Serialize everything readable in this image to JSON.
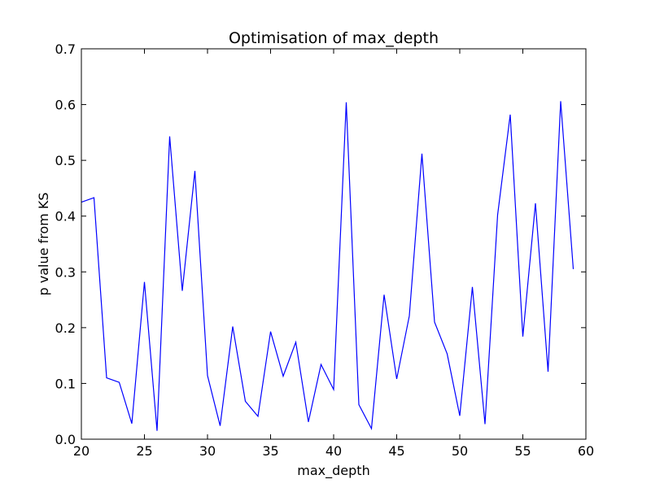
{
  "chart_data": {
    "type": "line",
    "title": "Optimisation of max_depth",
    "xlabel": "max_depth",
    "ylabel": "p value from KS",
    "xlim": [
      20,
      60
    ],
    "ylim": [
      0.0,
      0.7
    ],
    "xticks": [
      20,
      25,
      30,
      35,
      40,
      45,
      50,
      55,
      60
    ],
    "xtick_labels": [
      "20",
      "25",
      "30",
      "35",
      "40",
      "45",
      "50",
      "55",
      "60"
    ],
    "yticks": [
      0.0,
      0.1,
      0.2,
      0.3,
      0.4,
      0.5,
      0.6,
      0.7
    ],
    "ytick_labels": [
      "0.0",
      "0.1",
      "0.2",
      "0.3",
      "0.4",
      "0.5",
      "0.6",
      "0.7"
    ],
    "grid": false,
    "legend": "none",
    "series": [
      {
        "color": "#0000ff",
        "x": [
          20,
          21,
          22,
          23,
          24,
          25,
          26,
          27,
          28,
          29,
          30,
          31,
          32,
          33,
          34,
          35,
          36,
          37,
          38,
          39,
          40,
          41,
          42,
          43,
          44,
          45,
          46,
          47,
          48,
          49,
          50,
          51,
          52,
          53,
          54,
          55,
          56,
          57,
          58,
          59
        ],
        "y": [
          0.425,
          0.433,
          0.11,
          0.102,
          0.028,
          0.282,
          0.015,
          0.543,
          0.266,
          0.481,
          0.114,
          0.024,
          0.202,
          0.068,
          0.041,
          0.193,
          0.113,
          0.174,
          0.031,
          0.134,
          0.089,
          0.604,
          0.062,
          0.019,
          0.259,
          0.108,
          0.221,
          0.512,
          0.21,
          0.153,
          0.042,
          0.273,
          0.027,
          0.402,
          0.582,
          0.184,
          0.423,
          0.121,
          0.606,
          0.305
        ]
      }
    ]
  }
}
